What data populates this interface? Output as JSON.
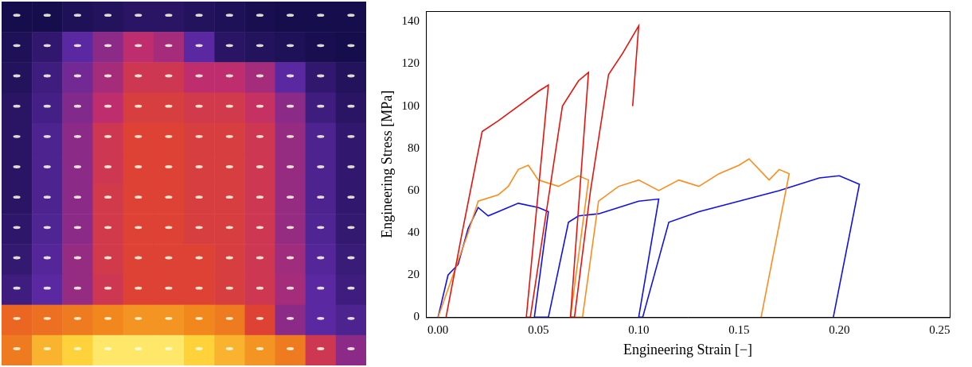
{
  "chart_data": [
    {
      "type": "heatmap",
      "tick_labels": false,
      "zlim": [
        0,
        1
      ],
      "cells": [
        [
          0.05,
          0.05,
          0.08,
          0.1,
          0.12,
          0.12,
          0.1,
          0.08,
          0.06,
          0.05,
          0.05,
          0.05
        ],
        [
          0.08,
          0.15,
          0.3,
          0.4,
          0.5,
          0.45,
          0.3,
          0.12,
          0.1,
          0.08,
          0.06,
          0.05
        ],
        [
          0.1,
          0.2,
          0.35,
          0.45,
          0.55,
          0.55,
          0.5,
          0.5,
          0.45,
          0.3,
          0.15,
          0.1
        ],
        [
          0.12,
          0.22,
          0.38,
          0.5,
          0.58,
          0.58,
          0.56,
          0.56,
          0.52,
          0.4,
          0.2,
          0.12
        ],
        [
          0.12,
          0.25,
          0.4,
          0.55,
          0.6,
          0.6,
          0.58,
          0.58,
          0.55,
          0.42,
          0.25,
          0.15
        ],
        [
          0.12,
          0.25,
          0.4,
          0.55,
          0.6,
          0.6,
          0.58,
          0.58,
          0.55,
          0.42,
          0.25,
          0.15
        ],
        [
          0.12,
          0.25,
          0.4,
          0.56,
          0.6,
          0.6,
          0.58,
          0.58,
          0.55,
          0.42,
          0.25,
          0.15
        ],
        [
          0.14,
          0.26,
          0.4,
          0.56,
          0.6,
          0.6,
          0.58,
          0.58,
          0.55,
          0.42,
          0.26,
          0.16
        ],
        [
          0.16,
          0.28,
          0.42,
          0.56,
          0.6,
          0.6,
          0.6,
          0.58,
          0.55,
          0.44,
          0.28,
          0.18
        ],
        [
          0.2,
          0.3,
          0.42,
          0.55,
          0.6,
          0.6,
          0.6,
          0.58,
          0.55,
          0.45,
          0.3,
          0.2
        ],
        [
          0.7,
          0.72,
          0.75,
          0.78,
          0.8,
          0.8,
          0.78,
          0.75,
          0.6,
          0.4,
          0.3,
          0.25
        ],
        [
          0.75,
          0.85,
          0.9,
          0.95,
          0.95,
          0.95,
          0.9,
          0.85,
          0.8,
          0.75,
          0.55,
          0.4
        ]
      ]
    },
    {
      "type": "line",
      "x_label": "Engineering Strain [−]",
      "y_label": "Engineering Stress [MPa]",
      "xlim": [
        -0.006,
        0.255
      ],
      "xticks": [
        {
          "value": 0,
          "label": "0.00"
        },
        {
          "value": 0.05,
          "label": "0.05"
        },
        {
          "value": 0.1,
          "label": "0.10"
        },
        {
          "value": 0.15,
          "label": "0.15"
        },
        {
          "value": 0.2,
          "label": "0.20"
        },
        {
          "value": 0.25,
          "label": "0.25"
        }
      ],
      "ylim": [
        0,
        145
      ],
      "yticks": [
        0,
        20,
        40,
        60,
        80,
        100,
        120,
        140
      ],
      "grid": false,
      "series": [
        {
          "color": "#e8120c",
          "x": [
            0.004,
            0.012,
            0.022,
            0.03,
            0.04,
            0.05,
            0.055,
            0.044,
            0.046,
            0.054,
            0.062,
            0.07,
            0.075,
            0.066,
            0.068,
            0.076,
            0.085,
            0.092,
            0.1,
            0.097
          ],
          "values": [
            0,
            40,
            88,
            93,
            100,
            107,
            110,
            0,
            0,
            50,
            100,
            112,
            116,
            0,
            0,
            60,
            115,
            125,
            138,
            100
          ]
        },
        {
          "color": "#ff8c1a",
          "x": [
            0.0,
            0.015,
            0.02,
            0.03,
            0.035,
            0.04,
            0.045,
            0.05,
            0.06,
            0.07,
            0.075,
            0.066,
            0.072,
            0.08,
            0.09,
            0.1,
            0.11,
            0.12,
            0.13,
            0.14,
            0.15,
            0.155,
            0.165,
            0.17,
            0.175,
            0.161
          ],
          "values": [
            0,
            40,
            55,
            58,
            62,
            70,
            72,
            65,
            62,
            67,
            65,
            0,
            0,
            55,
            62,
            65,
            60,
            65,
            62,
            68,
            72,
            75,
            65,
            70,
            68,
            0
          ]
        },
        {
          "color": "#1010e8",
          "x": [
            0.0,
            0.005,
            0.01,
            0.015,
            0.02,
            0.025,
            0.03,
            0.04,
            0.05,
            0.055,
            0.048,
            0.055,
            0.065,
            0.07,
            0.08,
            0.09,
            0.1,
            0.11,
            0.1,
            0.102,
            0.115,
            0.13,
            0.15,
            0.17,
            0.19,
            0.2,
            0.21,
            0.197
          ],
          "values": [
            0,
            20,
            25,
            42,
            52,
            48,
            50,
            54,
            52,
            50,
            0,
            0,
            45,
            48,
            49,
            52,
            55,
            56,
            0,
            0,
            45,
            50,
            55,
            60,
            66,
            67,
            63,
            0
          ]
        }
      ]
    }
  ]
}
